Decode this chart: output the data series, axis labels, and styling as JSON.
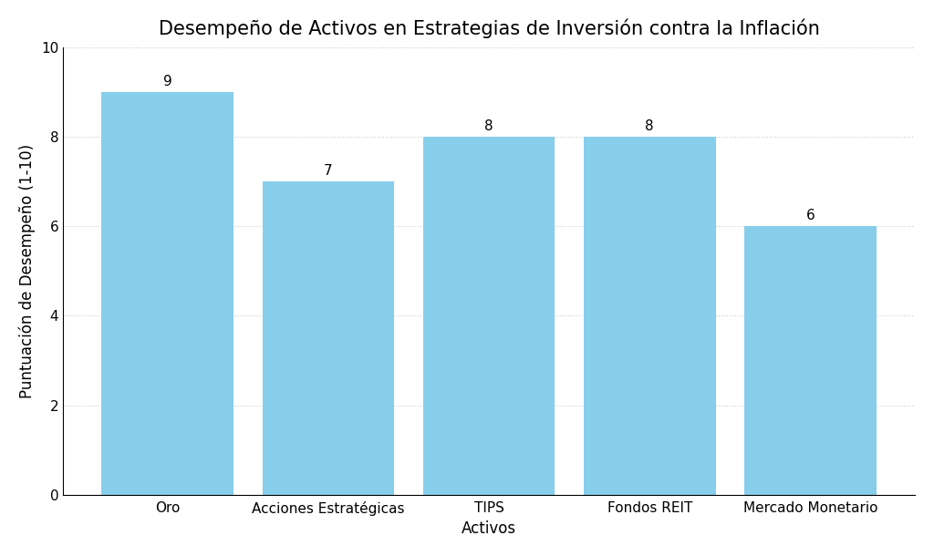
{
  "title": "Desempeño de Activos en Estrategias de Inversión contra la Inflación",
  "categories": [
    "Oro",
    "Acciones Estratégicas",
    "TIPS",
    "Fondos REIT",
    "Mercado Monetario"
  ],
  "values": [
    9,
    7,
    8,
    8,
    6
  ],
  "bar_color": "#87CEEB",
  "xlabel": "Activos",
  "ylabel": "Puntuación de Desempeño (1-10)",
  "ylim": [
    0,
    10
  ],
  "yticks": [
    0,
    2,
    4,
    6,
    8,
    10
  ],
  "background_color": "#ffffff",
  "title_fontsize": 15,
  "label_fontsize": 12,
  "tick_fontsize": 11,
  "annotation_fontsize": 11,
  "grid_color": "#cccccc",
  "grid_linestyle": ":",
  "bar_width": 0.82
}
